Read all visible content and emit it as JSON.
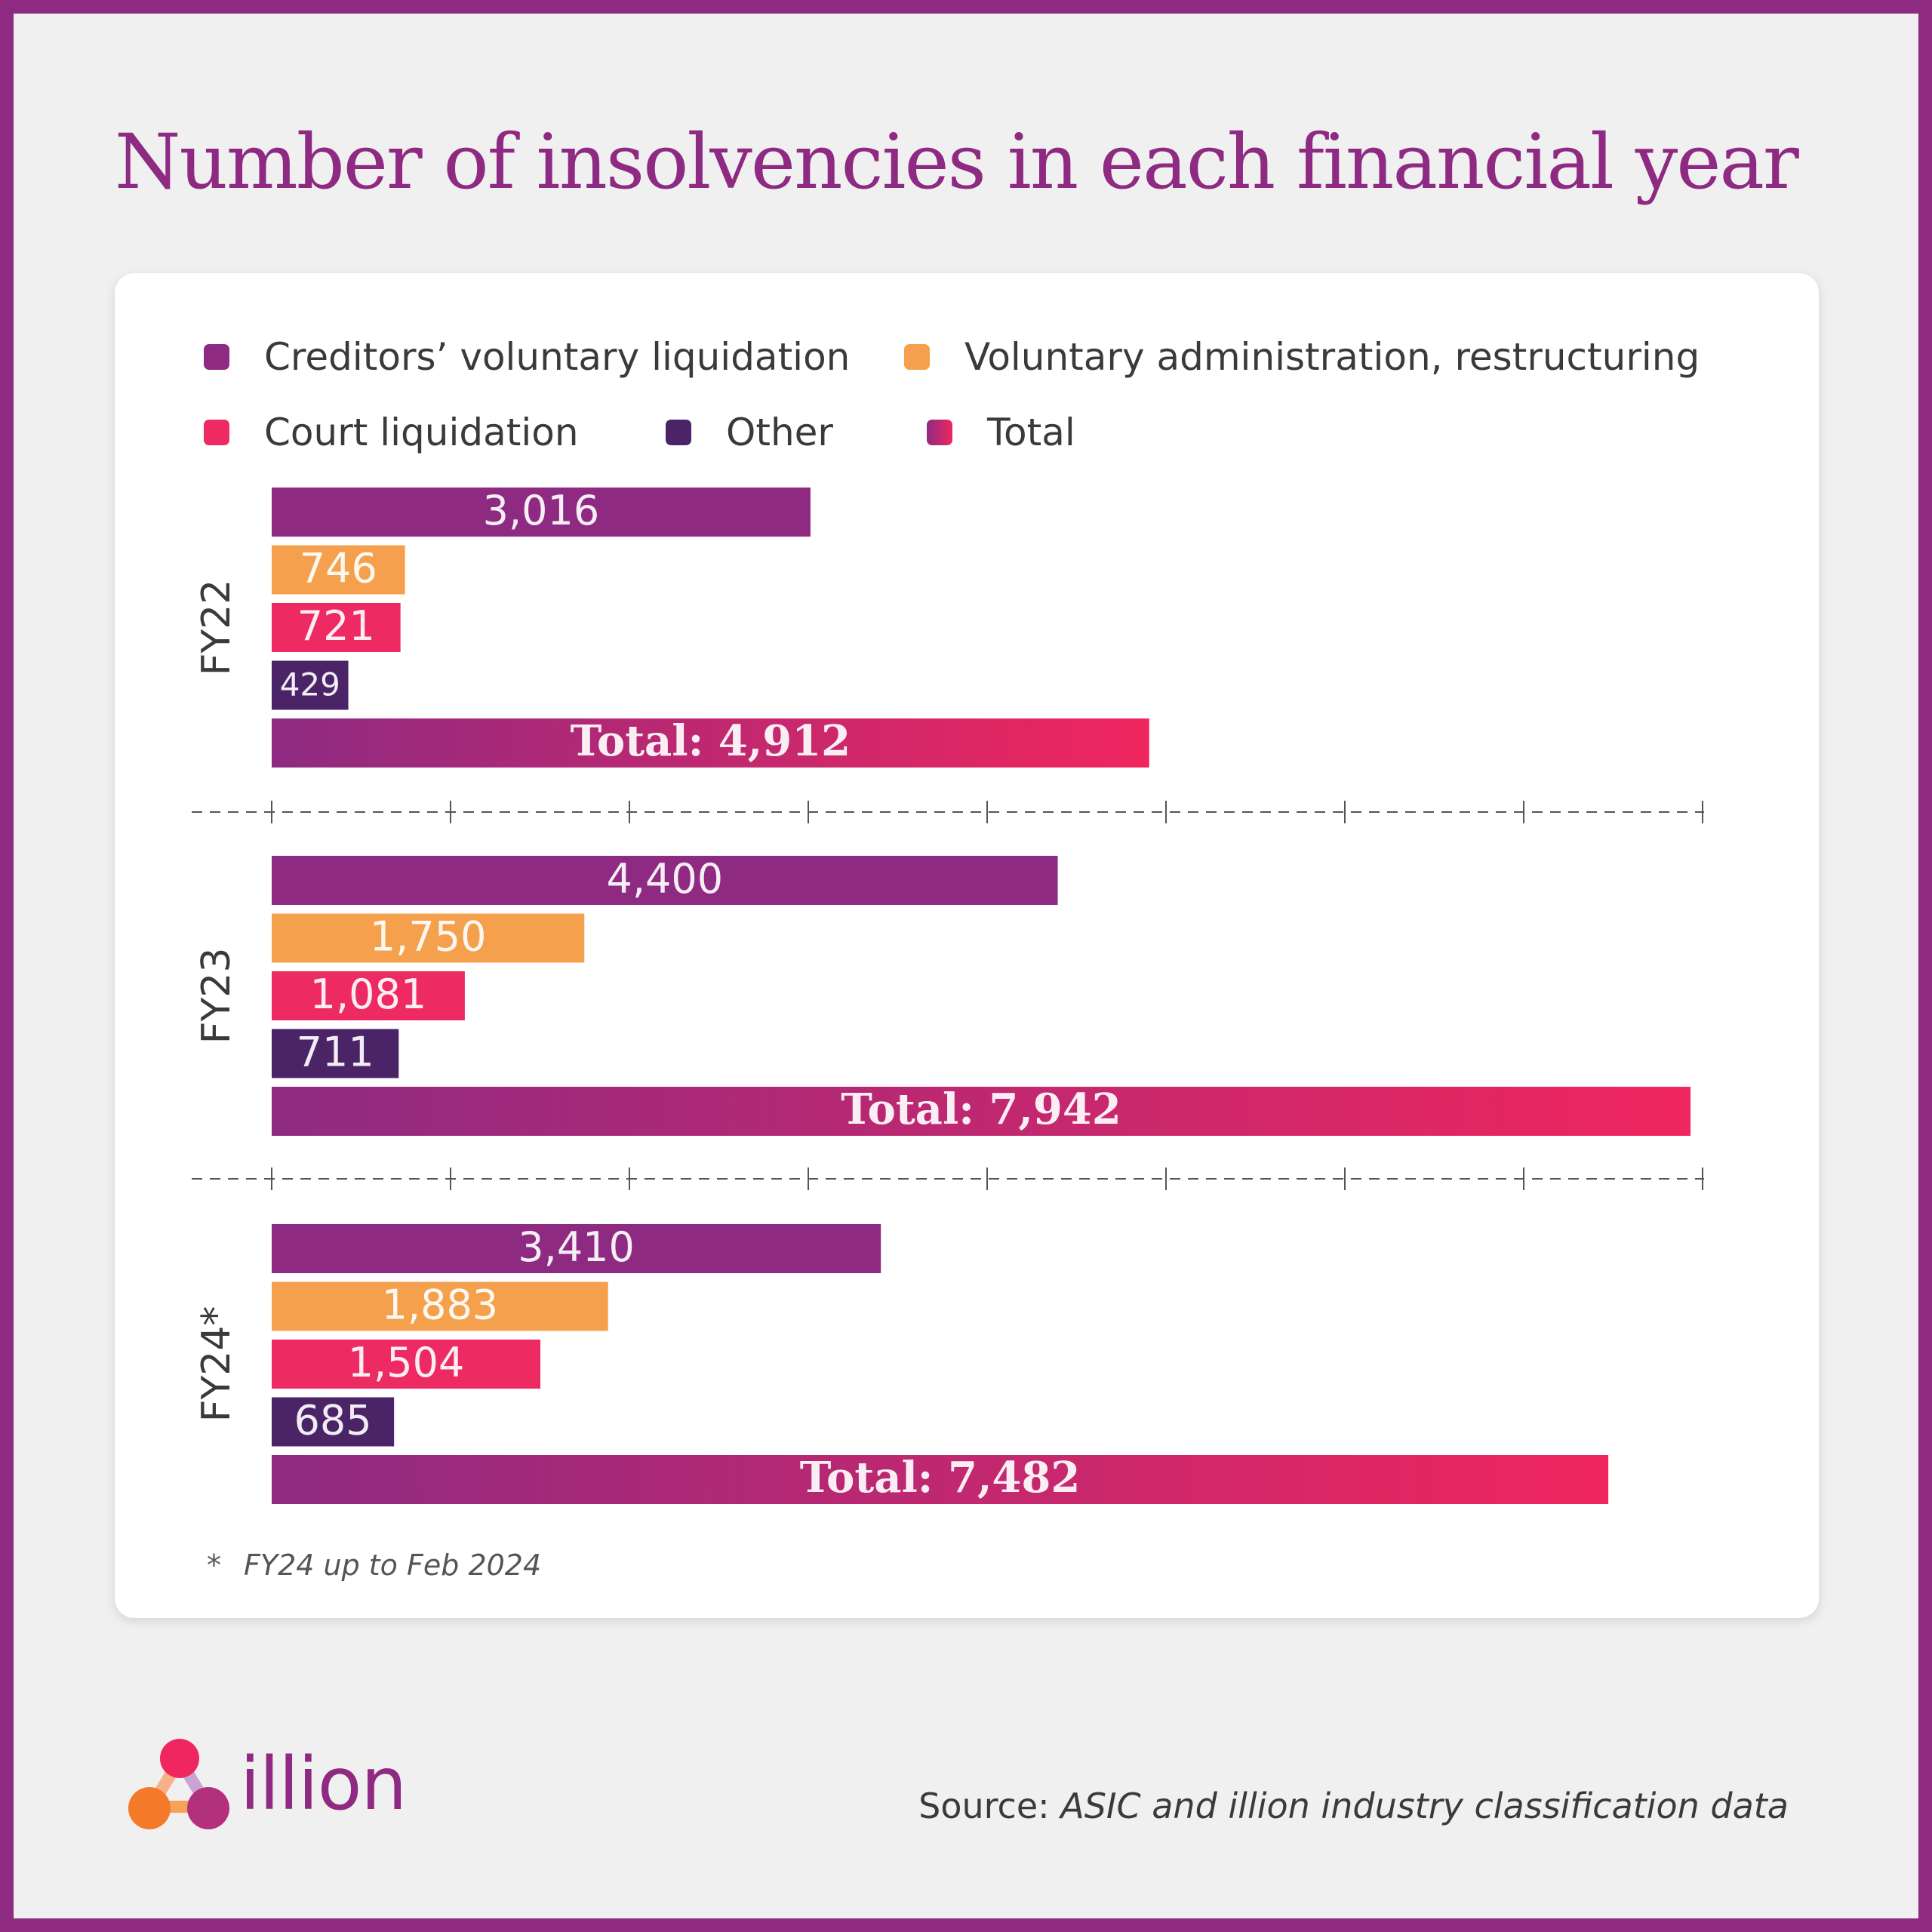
{
  "chart_data": {
    "type": "bar",
    "orientation": "horizontal",
    "title": "Number of insolvencies in each financial year",
    "categories": [
      "FY22",
      "FY23",
      "FY24*"
    ],
    "series": [
      {
        "name": "Creditors’ voluntary liquidation",
        "values": [
          3016,
          4400,
          3410
        ],
        "labels": [
          "3,016",
          "4,400",
          "3,410"
        ],
        "color": "#8e2a82"
      },
      {
        "name": "Voluntary administration, restructuring",
        "values": [
          746,
          1750,
          1883
        ],
        "labels": [
          "746",
          "1,750",
          "1,883"
        ],
        "color": "#f5a04c"
      },
      {
        "name": "Court liquidation",
        "values": [
          721,
          1081,
          1504
        ],
        "labels": [
          "721",
          "1,081",
          "1,504"
        ],
        "color": "#ee2a63"
      },
      {
        "name": "Other",
        "values": [
          429,
          711,
          685
        ],
        "labels": [
          "429",
          "711",
          "685"
        ],
        "color": "#4b2468"
      },
      {
        "name": "Total",
        "values": [
          4912,
          7942,
          7482
        ],
        "labels": [
          "Total: 4,912",
          "Total: 7,942",
          "Total: 7,482"
        ],
        "gradient": [
          "#8e2a82",
          "#f0265e"
        ]
      }
    ],
    "xlim": [
      0,
      8000
    ],
    "legend_position": "top",
    "grid": false
  },
  "footnote": {
    "marker": "*",
    "text": "FY24 up to Feb 2024"
  },
  "brand": {
    "name": "illion"
  },
  "source": {
    "prefix": "Source:",
    "text": "ASIC and illion industry classification data"
  },
  "colors": {
    "frame": "#8e2a82",
    "background": "#f0f0f0",
    "card": "#ffffff"
  }
}
